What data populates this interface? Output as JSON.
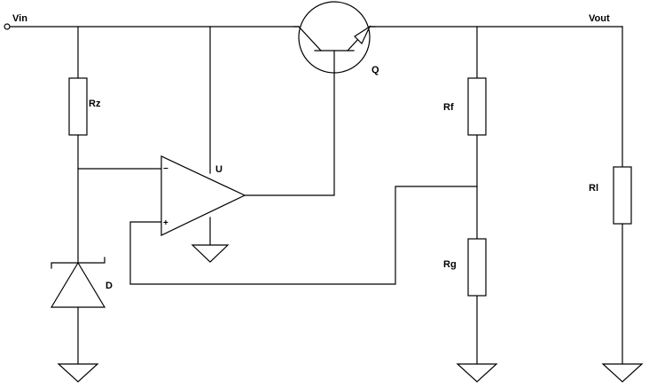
{
  "labels": {
    "vin": "Vin",
    "vout": "Vout",
    "rz": "Rz",
    "u": "U",
    "q": "Q",
    "rf": "Rf",
    "rg": "Rg",
    "rl": "Rl",
    "d": "D",
    "minus": "−",
    "plus": "+"
  }
}
